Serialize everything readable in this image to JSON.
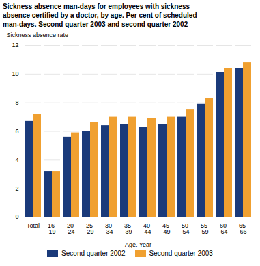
{
  "chart_data": {
    "type": "bar",
    "title": "Sickness absence man-days for employees with sickness\nabsence certified by a doctor, by age. Per cent of scheduled\nman-days. Second quarter 2003 and second quarter 2002",
    "xlabel": "Age. Year",
    "ylabel": "Sickness absence rate",
    "categories": [
      "Total",
      "16-\n19",
      "20-\n24",
      "25-\n29",
      "30-\n34",
      "35-\n39",
      "40-\n44",
      "45-\n49",
      "50-\n54",
      "55-\n59",
      "60-\n64",
      "65-\n66"
    ],
    "series": [
      {
        "name": "Second quarter 2002",
        "color": "#1a3a7a",
        "values": [
          6.7,
          3.2,
          5.6,
          6.0,
          6.4,
          6.5,
          6.3,
          6.5,
          7.0,
          7.9,
          10.1,
          10.4
        ]
      },
      {
        "name": "Second quarter 2003",
        "color": "#f0a030",
        "values": [
          7.2,
          3.2,
          5.9,
          6.6,
          7.0,
          7.0,
          6.9,
          7.0,
          7.5,
          8.3,
          10.4,
          10.8
        ]
      }
    ],
    "ylim": [
      0,
      12
    ],
    "yticks": [
      0,
      2,
      4,
      6,
      8,
      10,
      12
    ],
    "grid": true,
    "legend": "bottom"
  }
}
